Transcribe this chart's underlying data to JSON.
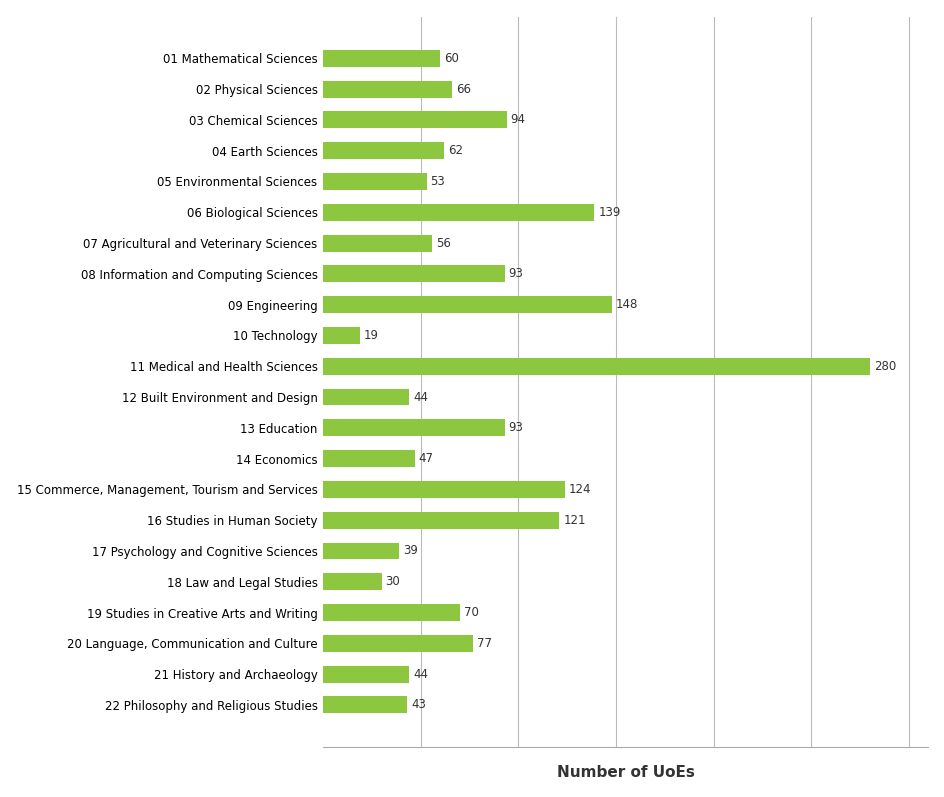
{
  "categories": [
    "22 Philosophy and Religious Studies",
    "21 History and Archaeology",
    "20 Language, Communication and Culture",
    "19 Studies in Creative Arts and Writing",
    "18 Law and Legal Studies",
    "17 Psychology and Cognitive Sciences",
    "16 Studies in Human Society",
    "15 Commerce, Management, Tourism and Services",
    "14 Economics",
    "13 Education",
    "12 Built Environment and Design",
    "11 Medical and Health Sciences",
    "10 Technology",
    "09 Engineering",
    "08 Information and Computing Sciences",
    "07 Agricultural and Veterinary Sciences",
    "06 Biological Sciences",
    "05 Environmental Sciences",
    "04 Earth Sciences",
    "03 Chemical Sciences",
    "02 Physical Sciences",
    "01 Mathematical Sciences"
  ],
  "values": [
    43,
    44,
    77,
    70,
    30,
    39,
    121,
    124,
    47,
    93,
    44,
    280,
    19,
    148,
    93,
    56,
    139,
    53,
    62,
    94,
    66,
    60
  ],
  "bar_color": "#8dc63f",
  "xlabel": "Number of UoEs",
  "xlabel_fontsize": 11,
  "xlabel_fontweight": "bold",
  "bar_label_fontsize": 8.5,
  "tick_label_fontsize": 8.5,
  "xlim": [
    0,
    310
  ],
  "grid_positions": [
    50,
    100,
    150,
    200,
    250,
    300
  ],
  "grid_color": "#bbbbbb",
  "background_color": "#ffffff",
  "bar_height": 0.55,
  "figure_width": 9.45,
  "figure_height": 7.97
}
